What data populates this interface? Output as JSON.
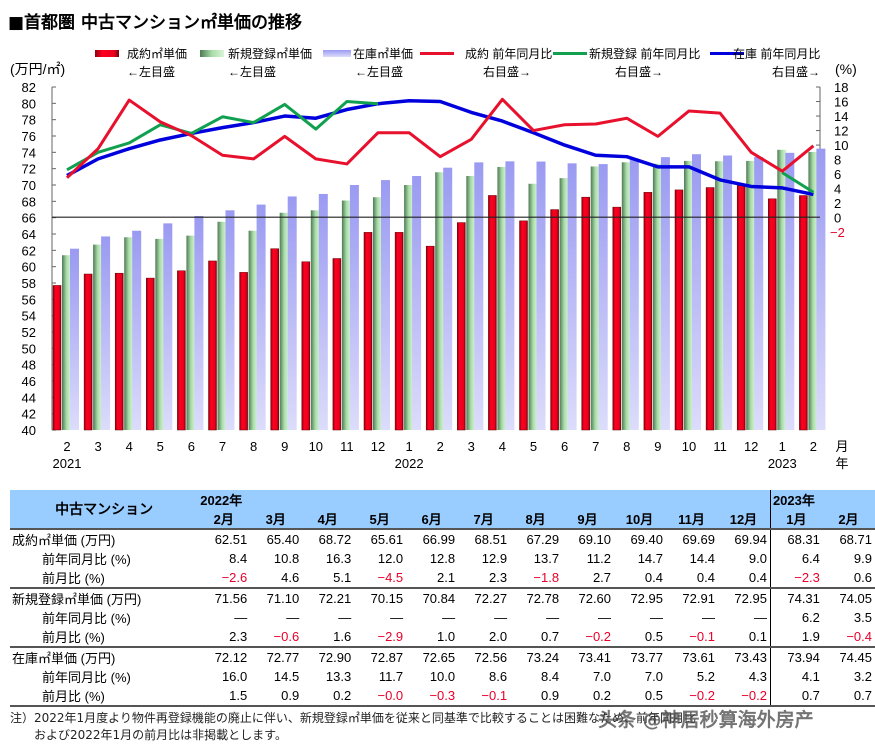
{
  "title": "■首都圏 中古マンション㎡単価の推移",
  "chart_data": {
    "type": "bar+line",
    "title": "■首都圏 中古マンション㎡単価の推移",
    "left_axis_label": "(万円/㎡)",
    "right_axis_label": "(%)",
    "left_ylim": [
      40,
      82
    ],
    "right_ylim": [
      -2,
      18
    ],
    "left_ticks": [
      40,
      42,
      44,
      46,
      48,
      50,
      52,
      54,
      56,
      58,
      60,
      62,
      64,
      66,
      68,
      70,
      72,
      74,
      76,
      78,
      80,
      82
    ],
    "right_ticks": [
      18,
      16,
      14,
      12,
      10,
      8,
      6,
      4,
      2,
      0,
      -2
    ],
    "categories": [
      "2",
      "3",
      "4",
      "5",
      "6",
      "7",
      "8",
      "9",
      "10",
      "11",
      "12",
      "1",
      "2",
      "3",
      "4",
      "5",
      "6",
      "7",
      "8",
      "9",
      "10",
      "11",
      "12",
      "1",
      "2"
    ],
    "year_labels": [
      {
        "index": 0,
        "label": "2021"
      },
      {
        "index": 11,
        "label": "2022"
      },
      {
        "index": 23,
        "label": "2023"
      }
    ],
    "x_unit_month": "月",
    "x_unit_year": "年",
    "legend_position": "top",
    "series": [
      {
        "name": "成約㎡単価",
        "note": "←左目盛",
        "kind": "bar",
        "axis": "left",
        "color": "#e8001c",
        "values": [
          57.7,
          59.1,
          59.2,
          58.6,
          59.5,
          60.7,
          59.3,
          62.2,
          60.6,
          61.0,
          64.2,
          64.2,
          62.51,
          65.4,
          68.72,
          65.61,
          66.99,
          68.51,
          67.29,
          69.1,
          69.4,
          69.69,
          69.94,
          68.31,
          68.71
        ]
      },
      {
        "name": "新規登録㎡単価",
        "note": "←左目盛",
        "kind": "bar",
        "axis": "left",
        "color": "#9ccc9c",
        "values": [
          61.4,
          62.7,
          63.6,
          63.4,
          63.8,
          65.5,
          64.4,
          66.6,
          66.9,
          68.1,
          68.5,
          70.0,
          71.56,
          71.1,
          72.21,
          70.15,
          70.84,
          72.27,
          72.78,
          72.6,
          72.95,
          72.91,
          72.95,
          74.31,
          74.05
        ]
      },
      {
        "name": "在庫㎡単価",
        "note": "←左目盛",
        "kind": "bar",
        "axis": "left",
        "color": "#a8a8f4",
        "values": [
          62.2,
          63.7,
          64.4,
          65.3,
          66.2,
          66.9,
          67.6,
          68.6,
          68.9,
          70.0,
          70.6,
          71.1,
          72.12,
          72.77,
          72.9,
          72.87,
          72.65,
          72.56,
          73.24,
          73.41,
          73.77,
          73.61,
          73.43,
          73.94,
          74.45
        ]
      },
      {
        "name": "成約 前年同月比",
        "note": "右目盛→",
        "kind": "line",
        "axis": "right",
        "color": "#e8112d",
        "values": [
          5.5,
          9.5,
          16.2,
          13.2,
          11.3,
          8.6,
          8.1,
          11.2,
          8.1,
          7.4,
          11.7,
          11.7,
          8.4,
          10.8,
          16.3,
          12.0,
          12.8,
          12.9,
          13.7,
          11.2,
          14.7,
          14.4,
          9.0,
          6.4,
          9.9
        ]
      },
      {
        "name": "新規登録 前年同月比",
        "note": "右目盛→",
        "kind": "line",
        "axis": "right",
        "color": "#10a050",
        "values": [
          6.6,
          9.0,
          10.3,
          12.8,
          11.6,
          13.9,
          13.1,
          15.6,
          12.2,
          16.0,
          15.7,
          null,
          null,
          null,
          null,
          null,
          null,
          null,
          null,
          null,
          null,
          null,
          null,
          6.2,
          3.5
        ]
      },
      {
        "name": "在庫 前年同月比",
        "note": "右目盛→",
        "kind": "line",
        "axis": "right",
        "color": "#0000dd",
        "values": [
          5.8,
          8.1,
          9.5,
          10.7,
          11.6,
          12.4,
          13.1,
          14.0,
          13.7,
          14.9,
          15.7,
          16.1,
          16.0,
          14.5,
          13.3,
          11.7,
          10.0,
          8.6,
          8.4,
          7.0,
          7.0,
          5.2,
          4.3,
          4.1,
          3.2
        ]
      }
    ],
    "grid": false
  },
  "table": {
    "corner": "中古マンション",
    "year_2022": "2022年",
    "year_2023": "2023年",
    "months": [
      "2月",
      "3月",
      "4月",
      "5月",
      "6月",
      "7月",
      "8月",
      "9月",
      "10月",
      "11月",
      "12月",
      "1月",
      "2月"
    ],
    "rows": [
      {
        "label": "成約㎡単価 (万円)",
        "sub": false,
        "values": [
          "62.51",
          "65.40",
          "68.72",
          "65.61",
          "66.99",
          "68.51",
          "67.29",
          "69.10",
          "69.40",
          "69.69",
          "69.94",
          "68.31",
          "68.71"
        ]
      },
      {
        "label": "前年同月比 (%)",
        "sub": true,
        "values": [
          "8.4",
          "10.8",
          "16.3",
          "12.0",
          "12.8",
          "12.9",
          "13.7",
          "11.2",
          "14.7",
          "14.4",
          "9.0",
          "6.4",
          "9.9"
        ]
      },
      {
        "label": "前月比 (%)",
        "sub": true,
        "values": [
          "−2.6",
          "4.6",
          "5.1",
          "−4.5",
          "2.1",
          "2.3",
          "−1.8",
          "2.7",
          "0.4",
          "0.4",
          "0.4",
          "−2.3",
          "0.6"
        ]
      },
      {
        "label": "新規登録㎡単価 (万円)",
        "sub": false,
        "values": [
          "71.56",
          "71.10",
          "72.21",
          "70.15",
          "70.84",
          "72.27",
          "72.78",
          "72.60",
          "72.95",
          "72.91",
          "72.95",
          "74.31",
          "74.05"
        ]
      },
      {
        "label": "前年同月比 (%)",
        "sub": true,
        "values": [
          "—",
          "—",
          "—",
          "—",
          "—",
          "—",
          "—",
          "—",
          "—",
          "—",
          "—",
          "6.2",
          "3.5"
        ]
      },
      {
        "label": "前月比 (%)",
        "sub": true,
        "values": [
          "2.3",
          "−0.6",
          "1.6",
          "−2.9",
          "1.0",
          "2.0",
          "0.7",
          "−0.2",
          "0.5",
          "−0.1",
          "0.1",
          "1.9",
          "−0.4"
        ]
      },
      {
        "label": "在庫㎡単価 (万円)",
        "sub": false,
        "values": [
          "72.12",
          "72.77",
          "72.90",
          "72.87",
          "72.65",
          "72.56",
          "73.24",
          "73.41",
          "73.77",
          "73.61",
          "73.43",
          "73.94",
          "74.45"
        ]
      },
      {
        "label": "前年同月比 (%)",
        "sub": true,
        "values": [
          "16.0",
          "14.5",
          "13.3",
          "11.7",
          "10.0",
          "8.6",
          "8.4",
          "7.0",
          "7.0",
          "5.2",
          "4.3",
          "4.1",
          "3.2"
        ]
      },
      {
        "label": "前月比 (%)",
        "sub": true,
        "values": [
          "1.5",
          "0.9",
          "0.2",
          "−0.0",
          "−0.3",
          "−0.1",
          "0.9",
          "0.2",
          "0.5",
          "−0.2",
          "−0.2",
          "0.7",
          "0.7"
        ]
      }
    ]
  },
  "note": {
    "line1": "注）2022年1月度より物件再登録機能の廃止に伴い、新規登録㎡単価を従来と同基準で比較することは困難なため、前年同月比",
    "line2": "　　および2022年1月の前月比は非掲載とします。"
  },
  "watermark": "头条 @神居秒算海外房产",
  "colors": {
    "header_bg": "#99ccff",
    "negative": "#e8002a"
  }
}
